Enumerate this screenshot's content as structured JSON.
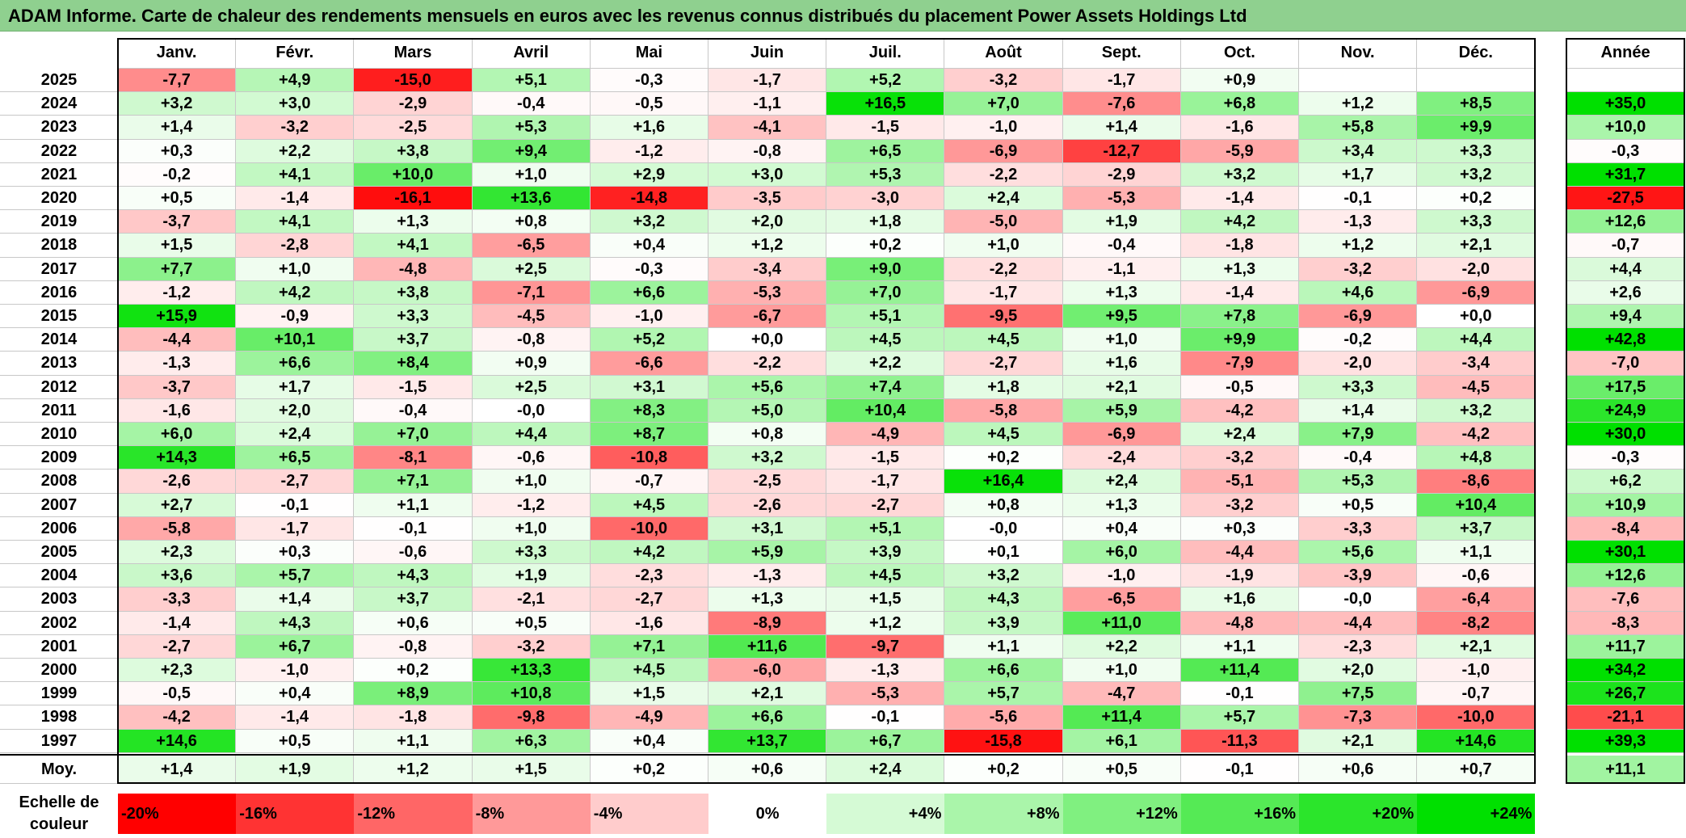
{
  "title": "ADAM Informe. Carte de chaleur des rendements mensuels en euros avec les revenus connus distribués du placement Power Assets Holdings Ltd",
  "months": [
    "Janv.",
    "Févr.",
    "Mars",
    "Avril",
    "Mai",
    "Juin",
    "Juil.",
    "Août",
    "Sept.",
    "Oct.",
    "Nov.",
    "Déc."
  ],
  "year_header": "Année",
  "avg_label": "Moy.",
  "scale_label_line1": "Echelle de",
  "scale_label_line2": "couleur",
  "scale": [
    "-20%",
    "-16%",
    "-12%",
    "-8%",
    "-4%",
    "0%",
    "+4%",
    "+8%",
    "+12%",
    "+16%",
    "+20%",
    "+24%"
  ],
  "chart_data": {
    "type": "heatmap",
    "title": "ADAM Informe. Carte de chaleur des rendements mensuels en euros avec les revenus connus distribués du placement Power Assets Holdings Ltd",
    "columns": [
      "Janv.",
      "Févr.",
      "Mars",
      "Avril",
      "Mai",
      "Juin",
      "Juil.",
      "Août",
      "Sept.",
      "Oct.",
      "Nov.",
      "Déc."
    ],
    "rows": [
      {
        "year": "2025",
        "values": [
          "-7,7",
          "+4,9",
          "-15,0",
          "+5,1",
          "-0,3",
          "-1,7",
          "+5,2",
          "-3,2",
          "-1,7",
          "+0,9",
          "",
          ""
        ],
        "annual": ""
      },
      {
        "year": "2024",
        "values": [
          "+3,2",
          "+3,0",
          "-2,9",
          "-0,4",
          "-0,5",
          "-1,1",
          "+16,5",
          "+7,0",
          "-7,6",
          "+6,8",
          "+1,2",
          "+8,5"
        ],
        "annual": "+35,0"
      },
      {
        "year": "2023",
        "values": [
          "+1,4",
          "-3,2",
          "-2,5",
          "+5,3",
          "+1,6",
          "-4,1",
          "-1,5",
          "-1,0",
          "+1,4",
          "-1,6",
          "+5,8",
          "+9,9"
        ],
        "annual": "+10,0"
      },
      {
        "year": "2022",
        "values": [
          "+0,3",
          "+2,2",
          "+3,8",
          "+9,4",
          "-1,2",
          "-0,8",
          "+6,5",
          "-6,9",
          "-12,7",
          "-5,9",
          "+3,4",
          "+3,3"
        ],
        "annual": "-0,3"
      },
      {
        "year": "2021",
        "values": [
          "-0,2",
          "+4,1",
          "+10,0",
          "+1,0",
          "+2,9",
          "+3,0",
          "+5,3",
          "-2,2",
          "-2,9",
          "+3,2",
          "+1,7",
          "+3,2"
        ],
        "annual": "+31,7"
      },
      {
        "year": "2020",
        "values": [
          "+0,5",
          "-1,4",
          "-16,1",
          "+13,6",
          "-14,8",
          "-3,5",
          "-3,0",
          "+2,4",
          "-5,3",
          "-1,4",
          "-0,1",
          "+0,2"
        ],
        "annual": "-27,5"
      },
      {
        "year": "2019",
        "values": [
          "-3,7",
          "+4,1",
          "+1,3",
          "+0,8",
          "+3,2",
          "+2,0",
          "+1,8",
          "-5,0",
          "+1,9",
          "+4,2",
          "-1,3",
          "+3,3"
        ],
        "annual": "+12,6"
      },
      {
        "year": "2018",
        "values": [
          "+1,5",
          "-2,8",
          "+4,1",
          "-6,5",
          "+0,4",
          "+1,2",
          "+0,2",
          "+1,0",
          "-0,4",
          "-1,8",
          "+1,2",
          "+2,1"
        ],
        "annual": "-0,7"
      },
      {
        "year": "2017",
        "values": [
          "+7,7",
          "+1,0",
          "-4,8",
          "+2,5",
          "-0,3",
          "-3,4",
          "+9,0",
          "-2,2",
          "-1,1",
          "+1,3",
          "-3,2",
          "-2,0"
        ],
        "annual": "+4,4"
      },
      {
        "year": "2016",
        "values": [
          "-1,2",
          "+4,2",
          "+3,8",
          "-7,1",
          "+6,6",
          "-5,3",
          "+7,0",
          "-1,7",
          "+1,3",
          "-1,4",
          "+4,6",
          "-6,9"
        ],
        "annual": "+2,6"
      },
      {
        "year": "2015",
        "values": [
          "+15,9",
          "-0,9",
          "+3,3",
          "-4,5",
          "-1,0",
          "-6,7",
          "+5,1",
          "-9,5",
          "+9,5",
          "+7,8",
          "-6,9",
          "+0,0"
        ],
        "annual": "+9,4"
      },
      {
        "year": "2014",
        "values": [
          "-4,4",
          "+10,1",
          "+3,7",
          "-0,8",
          "+5,2",
          "+0,0",
          "+4,5",
          "+4,5",
          "+1,0",
          "+9,9",
          "-0,2",
          "+4,4"
        ],
        "annual": "+42,8"
      },
      {
        "year": "2013",
        "values": [
          "-1,3",
          "+6,6",
          "+8,4",
          "+0,9",
          "-6,6",
          "-2,2",
          "+2,2",
          "-2,7",
          "+1,6",
          "-7,9",
          "-2,0",
          "-3,4"
        ],
        "annual": "-7,0"
      },
      {
        "year": "2012",
        "values": [
          "-3,7",
          "+1,7",
          "-1,5",
          "+2,5",
          "+3,1",
          "+5,6",
          "+7,4",
          "+1,8",
          "+2,1",
          "-0,5",
          "+3,3",
          "-4,5"
        ],
        "annual": "+17,5"
      },
      {
        "year": "2011",
        "values": [
          "-1,6",
          "+2,0",
          "-0,4",
          "-0,0",
          "+8,3",
          "+5,0",
          "+10,4",
          "-5,8",
          "+5,9",
          "-4,2",
          "+1,4",
          "+3,2"
        ],
        "annual": "+24,9"
      },
      {
        "year": "2010",
        "values": [
          "+6,0",
          "+2,4",
          "+7,0",
          "+4,4",
          "+8,7",
          "+0,8",
          "-4,9",
          "+4,5",
          "-6,9",
          "+2,4",
          "+7,9",
          "-4,2"
        ],
        "annual": "+30,0"
      },
      {
        "year": "2009",
        "values": [
          "+14,3",
          "+6,5",
          "-8,1",
          "-0,6",
          "-10,8",
          "+3,2",
          "-1,5",
          "+0,2",
          "-2,4",
          "-3,2",
          "-0,4",
          "+4,8"
        ],
        "annual": "-0,3"
      },
      {
        "year": "2008",
        "values": [
          "-2,6",
          "-2,7",
          "+7,1",
          "+1,0",
          "-0,7",
          "-2,5",
          "-1,7",
          "+16,4",
          "+2,4",
          "-5,1",
          "+5,3",
          "-8,6"
        ],
        "annual": "+6,2"
      },
      {
        "year": "2007",
        "values": [
          "+2,7",
          "-0,1",
          "+1,1",
          "-1,2",
          "+4,5",
          "-2,6",
          "-2,7",
          "+0,8",
          "+1,3",
          "-3,2",
          "+0,5",
          "+10,4"
        ],
        "annual": "+10,9"
      },
      {
        "year": "2006",
        "values": [
          "-5,8",
          "-1,7",
          "-0,1",
          "+1,0",
          "-10,0",
          "+3,1",
          "+5,1",
          "-0,0",
          "+0,4",
          "+0,3",
          "-3,3",
          "+3,7"
        ],
        "annual": "-8,4"
      },
      {
        "year": "2005",
        "values": [
          "+2,3",
          "+0,3",
          "-0,6",
          "+3,3",
          "+4,2",
          "+5,9",
          "+3,9",
          "+0,1",
          "+6,0",
          "-4,4",
          "+5,6",
          "+1,1"
        ],
        "annual": "+30,1"
      },
      {
        "year": "2004",
        "values": [
          "+3,6",
          "+5,7",
          "+4,3",
          "+1,9",
          "-2,3",
          "-1,3",
          "+4,5",
          "+3,2",
          "-1,0",
          "-1,9",
          "-3,9",
          "-0,6"
        ],
        "annual": "+12,6"
      },
      {
        "year": "2003",
        "values": [
          "-3,3",
          "+1,4",
          "+3,7",
          "-2,1",
          "-2,7",
          "+1,3",
          "+1,5",
          "+4,3",
          "-6,5",
          "+1,6",
          "-0,0",
          "-6,4"
        ],
        "annual": "-7,6"
      },
      {
        "year": "2002",
        "values": [
          "-1,4",
          "+4,3",
          "+0,6",
          "+0,5",
          "-1,6",
          "-8,9",
          "+1,2",
          "+3,9",
          "+11,0",
          "-4,8",
          "-4,4",
          "-8,2"
        ],
        "annual": "-8,3"
      },
      {
        "year": "2001",
        "values": [
          "-2,7",
          "+6,7",
          "-0,8",
          "-3,2",
          "+7,1",
          "+11,6",
          "-9,7",
          "+1,1",
          "+2,2",
          "+1,1",
          "-2,3",
          "+2,1"
        ],
        "annual": "+11,7"
      },
      {
        "year": "2000",
        "values": [
          "+2,3",
          "-1,0",
          "+0,2",
          "+13,3",
          "+4,5",
          "-6,0",
          "-1,3",
          "+6,6",
          "+1,0",
          "+11,4",
          "+2,0",
          "-1,0"
        ],
        "annual": "+34,2"
      },
      {
        "year": "1999",
        "values": [
          "-0,5",
          "+0,4",
          "+8,9",
          "+10,8",
          "+1,5",
          "+2,1",
          "-5,3",
          "+5,7",
          "-4,7",
          "-0,1",
          "+7,5",
          "-0,7"
        ],
        "annual": "+26,7"
      },
      {
        "year": "1998",
        "values": [
          "-4,2",
          "-1,4",
          "-1,8",
          "-9,8",
          "-4,9",
          "+6,6",
          "-0,1",
          "-5,6",
          "+11,4",
          "+5,7",
          "-7,3",
          "-10,0"
        ],
        "annual": "-21,1"
      },
      {
        "year": "1997",
        "values": [
          "+14,6",
          "+0,5",
          "+1,1",
          "+6,3",
          "+0,4",
          "+13,7",
          "+6,7",
          "-15,8",
          "+6,1",
          "-11,3",
          "+2,1",
          "+14,6"
        ],
        "annual": "+39,3"
      }
    ],
    "average": {
      "label": "Moy.",
      "values": [
        "+1,4",
        "+1,9",
        "+1,2",
        "+1,5",
        "+0,2",
        "+0,6",
        "+2,4",
        "+0,2",
        "+0,5",
        "-0,1",
        "+0,6",
        "+0,7"
      ],
      "annual": "+11,1"
    },
    "color_scale": {
      "min": -20,
      "max": 24,
      "negative_color": "#ff0000",
      "positive_color": "#00e000",
      "zero_color": "#ffffff"
    }
  }
}
